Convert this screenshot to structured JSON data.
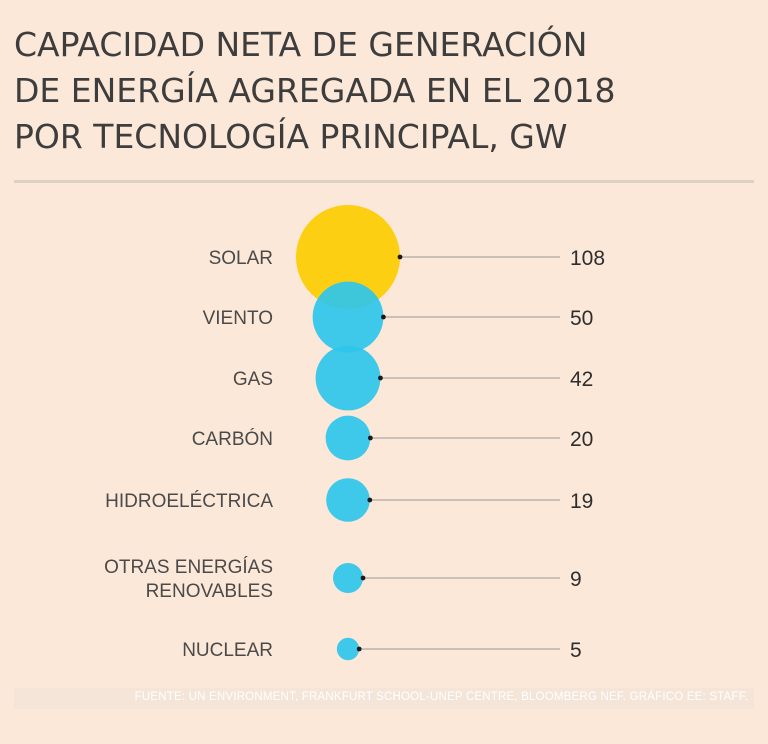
{
  "colors": {
    "background": "#fce8d8",
    "solar": "#fdcf12",
    "other": "#2fc5ea",
    "leader": "#999999",
    "dot": "#1a1a1a"
  },
  "chart_data": {
    "type": "bubble",
    "title_lines": [
      "CAPACIDAD NETA DE GENERACIÓN",
      "DE ENERGÍA AGREGADA EN EL 2018",
      "POR TECNOLOGÍA PRINCIPAL, GW"
    ],
    "unit": "GW",
    "items": [
      {
        "label": [
          "SOLAR"
        ],
        "value": 108,
        "value_label": "108",
        "color": "#fdcf12"
      },
      {
        "label": [
          "VIENTO"
        ],
        "value": 50,
        "value_label": "50",
        "color": "#2fc5ea"
      },
      {
        "label": [
          "GAS"
        ],
        "value": 42,
        "value_label": "42",
        "color": "#2fc5ea"
      },
      {
        "label": [
          "CARBÓN"
        ],
        "value": 20,
        "value_label": "20",
        "color": "#2fc5ea"
      },
      {
        "label": [
          "HIDROELÉCTRICA"
        ],
        "value": 19,
        "value_label": "19",
        "color": "#2fc5ea"
      },
      {
        "label": [
          "OTRAS ENERGÍAS",
          "RENOVABLES"
        ],
        "value": 9,
        "value_label": "9",
        "color": "#2fc5ea"
      },
      {
        "label": [
          "NUCLEAR"
        ],
        "value": 5,
        "value_label": "5",
        "color": "#2fc5ea"
      }
    ]
  },
  "footer": {
    "source": "FUENTE: UN ENVIRONMENT, FRANKFURT SCHOOL-UNEP CENTRE, BLOOMBERG NEF. GRÁFICO EE: STAFF."
  }
}
